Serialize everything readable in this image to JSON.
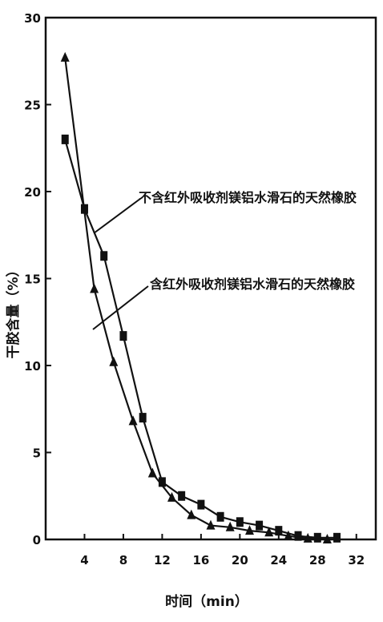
{
  "chart_data": {
    "type": "line",
    "xlabel": "时间（min）",
    "ylabel": "干胶含量（%）",
    "xlim": [
      0,
      34
    ],
    "ylim": [
      0,
      30
    ],
    "xticks": [
      4,
      8,
      12,
      16,
      20,
      24,
      28,
      32
    ],
    "yticks": [
      0,
      5,
      10,
      15,
      20,
      25,
      30
    ],
    "grid": false,
    "series": [
      {
        "name": "不含红外吸收剂镁铝水滑石的天然橡胶",
        "marker": "square",
        "x": [
          2,
          4,
          6,
          8,
          10,
          12,
          14,
          16,
          18,
          20,
          22,
          24,
          26,
          28,
          30
        ],
        "y": [
          23.0,
          19.0,
          16.3,
          11.7,
          7.0,
          3.3,
          2.5,
          2.0,
          1.3,
          1.0,
          0.8,
          0.5,
          0.2,
          0.1,
          0.1
        ]
      },
      {
        "name": "含红外吸收剂镁铝水滑石的天然橡胶",
        "marker": "triangle",
        "x": [
          2,
          5,
          7,
          9,
          11,
          13,
          15,
          17,
          19,
          21,
          23,
          25,
          27,
          29
        ],
        "y": [
          27.7,
          14.4,
          10.2,
          6.8,
          3.8,
          2.4,
          1.4,
          0.8,
          0.7,
          0.5,
          0.4,
          0.2,
          0.05,
          0.0
        ]
      }
    ]
  }
}
